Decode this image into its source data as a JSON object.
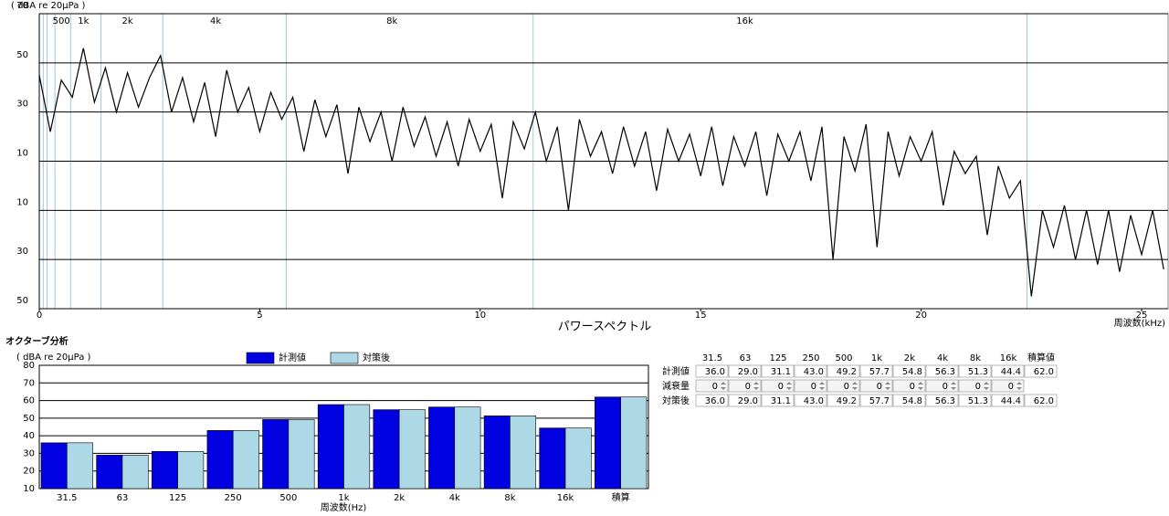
{
  "chart_data": [
    {
      "type": "line",
      "y_axis_label": "( dBA re 20μPa )",
      "title": "パワースペクトル",
      "x_axis_label": "周波数(kHz)",
      "xlim": [
        0,
        25.6
      ],
      "xticks": [
        0,
        5,
        10,
        15,
        20,
        25
      ],
      "ylim": [
        -50,
        70
      ],
      "yticks": [
        70,
        50,
        30,
        10,
        {
          "value": -10,
          "label": "10"
        },
        {
          "value": -30,
          "label": "30"
        },
        {
          "value": -50,
          "label": "50"
        }
      ],
      "grid": true,
      "band_edges": [
        0.089,
        0.178,
        0.355,
        0.71,
        1.4,
        2.8,
        5.6,
        11.2,
        22.4
      ],
      "band_labels": [
        {
          "value": 0.5,
          "label": "500"
        },
        {
          "value": 1,
          "label": "1k"
        },
        {
          "value": 2,
          "label": "2k"
        },
        {
          "value": 4,
          "label": "4k"
        },
        {
          "value": 8,
          "label": "8k"
        },
        {
          "value": 16,
          "label": "16k"
        }
      ],
      "color": "#000000",
      "x": [
        0,
        0.25,
        0.5,
        0.75,
        1,
        1.25,
        1.5,
        1.75,
        2,
        2.25,
        2.5,
        2.75,
        3,
        3.25,
        3.5,
        3.75,
        4,
        4.25,
        4.5,
        4.75,
        5,
        5.25,
        5.5,
        5.75,
        6,
        6.25,
        6.5,
        6.75,
        7,
        7.25,
        7.5,
        7.75,
        8,
        8.25,
        8.5,
        8.75,
        9,
        9.25,
        9.5,
        9.75,
        10,
        10.25,
        10.5,
        10.75,
        11,
        11.25,
        11.5,
        11.75,
        12,
        12.25,
        12.5,
        12.75,
        13,
        13.25,
        13.5,
        13.75,
        14,
        14.25,
        14.5,
        14.75,
        15,
        15.25,
        15.5,
        15.75,
        16,
        16.25,
        16.5,
        16.75,
        17,
        17.25,
        17.5,
        17.75,
        18,
        18.25,
        18.5,
        18.75,
        19,
        19.25,
        19.5,
        19.75,
        20,
        20.25,
        20.5,
        20.75,
        21,
        21.25,
        21.5,
        21.75,
        22,
        22.25,
        22.5,
        22.75,
        23,
        23.25,
        23.5,
        23.75,
        24,
        24.25,
        24.5,
        24.75,
        25,
        25.25,
        25.5
      ],
      "values": [
        45,
        22,
        43,
        36,
        56,
        34,
        48,
        30,
        46,
        32,
        44,
        53,
        30,
        44,
        26,
        42,
        20,
        47,
        30,
        40,
        22,
        38,
        27,
        36,
        14,
        35,
        20,
        33,
        5,
        32,
        18,
        30,
        10,
        32,
        16,
        28,
        12,
        26,
        8,
        27,
        14,
        25,
        -5,
        26,
        15,
        30,
        10,
        24,
        -10,
        27,
        12,
        22,
        5,
        24,
        8,
        22,
        -2,
        23,
        10,
        21,
        4,
        24,
        0,
        20,
        8,
        22,
        -4,
        21,
        10,
        22,
        2,
        24,
        -30,
        20,
        6,
        25,
        -25,
        22,
        4,
        20,
        10,
        22,
        -8,
        14,
        5,
        12,
        -20,
        8,
        -5,
        2,
        -45,
        -10,
        -25,
        -8,
        -30,
        -10,
        -32,
        -10,
        -35,
        -12,
        -28,
        -10,
        -34
      ]
    },
    {
      "type": "bar",
      "y_axis_label": "( dBA re 20μPa )",
      "x_axis_label": "周波数(Hz)",
      "categories": [
        "31.5",
        "63",
        "125",
        "250",
        "500",
        "1k",
        "2k",
        "4k",
        "8k",
        "16k",
        "積算"
      ],
      "series": [
        {
          "name": "計測値",
          "color": "#0000e0",
          "values": [
            36.0,
            29.0,
            31.1,
            43.0,
            49.2,
            57.7,
            54.8,
            56.3,
            51.3,
            44.4,
            62.0
          ]
        },
        {
          "name": "対策後",
          "color": "#add8e6",
          "values": [
            36.0,
            29.0,
            31.1,
            43.0,
            49.2,
            57.7,
            54.8,
            56.3,
            51.3,
            44.4,
            62.0
          ]
        }
      ],
      "ylim": [
        10,
        80
      ],
      "yticks": [
        10,
        20,
        30,
        40,
        50,
        60,
        70,
        80
      ],
      "grid": true,
      "legend": "top"
    }
  ],
  "section_title": "オクターブ分析",
  "table": {
    "columns": [
      "31.5",
      "63",
      "125",
      "250",
      "500",
      "1k",
      "2k",
      "4k",
      "8k",
      "16k",
      "積算値"
    ],
    "rows": [
      {
        "label": "計測値",
        "values": [
          "36.0",
          "29.0",
          "31.1",
          "43.0",
          "49.2",
          "57.7",
          "54.8",
          "56.3",
          "51.3",
          "44.4",
          "62.0"
        ]
      },
      {
        "label": "減衰量",
        "values": [
          "0",
          "0",
          "0",
          "0",
          "0",
          "0",
          "0",
          "0",
          "0",
          "0"
        ]
      },
      {
        "label": "対策後",
        "values": [
          "36.0",
          "29.0",
          "31.1",
          "43.0",
          "49.2",
          "57.7",
          "54.8",
          "56.3",
          "51.3",
          "44.4",
          "62.0"
        ]
      }
    ]
  }
}
